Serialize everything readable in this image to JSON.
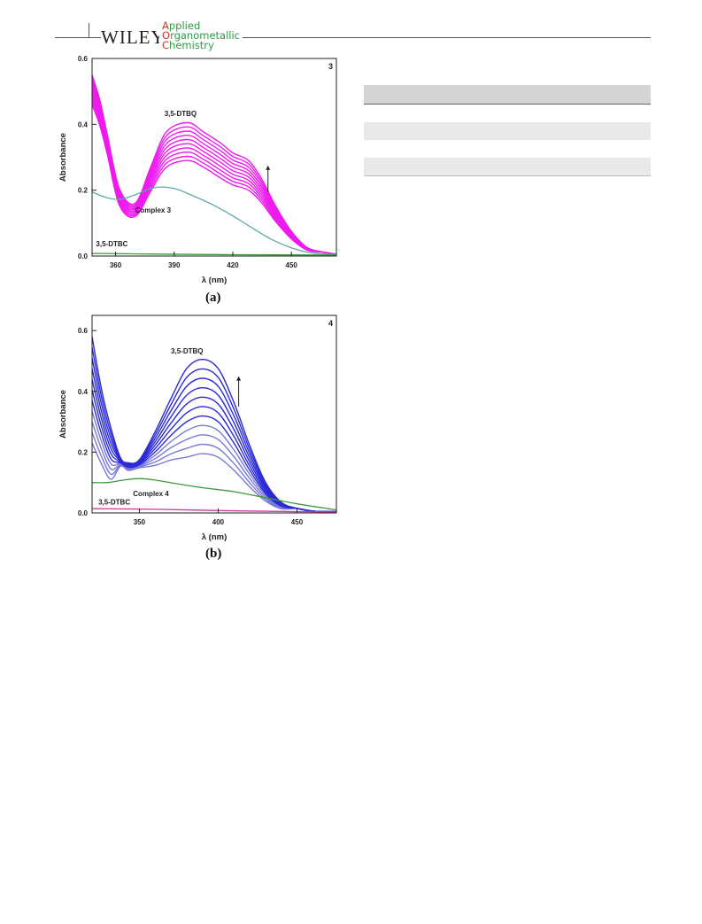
{
  "header": {
    "publisher": "WILEY",
    "journal_lines": [
      {
        "initial": "A",
        "rest": "pplied"
      },
      {
        "initial": "O",
        "rest": "rganometallic"
      },
      {
        "initial": "C",
        "rest": "hemistry"
      }
    ]
  },
  "figure": {
    "panel_a_label": "(a)",
    "panel_b_label": "(b)"
  },
  "colors": {
    "magenta": "#ee1aee",
    "blue": "#2a2ad8",
    "light_blue": "#7a78d8",
    "teal": "#5fa9a8",
    "green": "#3e9a3e",
    "pink": "#cc3a9c"
  },
  "chart_data": [
    {
      "type": "line",
      "panel_number": "3",
      "xlabel": "λ (nm)",
      "ylabel": "Absorbance",
      "xlim": [
        348,
        473
      ],
      "ylim": [
        0.0,
        0.6
      ],
      "x_ticks": [
        360,
        390,
        420,
        450
      ],
      "y_ticks": [
        "0.0",
        "0.2",
        "0.4",
        "0.6"
      ],
      "annotations": [
        "3,5-DTBQ",
        "Complex 3",
        "3,5-DTBC"
      ],
      "arrow": "up",
      "series": [
        {
          "name": "3,5-DTBQ",
          "count": 10,
          "shape": {
            "start_low": 0.46,
            "start_high": 0.55,
            "min_x": 370,
            "min_low": 0.12,
            "min_high": 0.16,
            "peak_x": 397,
            "peak_low": 0.29,
            "peak_high": 0.405,
            "shoulder_x": 428,
            "shoulder_low": 0.2,
            "shoulder_high": 0.29,
            "end": 0.005
          }
        },
        {
          "name": "Complex 3",
          "x": [
            348,
            355,
            362,
            370,
            380,
            390,
            400,
            410,
            420,
            430,
            440,
            450,
            460,
            473
          ],
          "y": [
            0.195,
            0.178,
            0.172,
            0.186,
            0.208,
            0.205,
            0.182,
            0.155,
            0.122,
            0.085,
            0.05,
            0.025,
            0.01,
            0.004
          ]
        },
        {
          "name": "3,5-DTBC",
          "x": [
            348,
            380,
            420,
            473
          ],
          "y": [
            0.008,
            0.006,
            0.004,
            0.003
          ]
        }
      ]
    },
    {
      "type": "line",
      "panel_number": "4",
      "xlabel": "λ (nm)",
      "ylabel": "Absorbance",
      "xlim": [
        320,
        475
      ],
      "ylim": [
        0.0,
        0.65
      ],
      "x_ticks": [
        350,
        400,
        450
      ],
      "y_ticks": [
        "0.0",
        "0.2",
        "0.4",
        "0.6"
      ],
      "annotations": [
        "3,5-DTBQ",
        "Complex 4",
        "3,5-DTBC"
      ],
      "arrow": "up",
      "series": [
        {
          "name": "3,5-DTBQ",
          "count": 11,
          "shape": {
            "start_low": 0.23,
            "start_high": 0.58,
            "min_x": 343,
            "min_low": 0.14,
            "min_high": 0.165,
            "peak_x": 390,
            "peak_low": 0.195,
            "peak_high": 0.505,
            "end": 0.004
          }
        },
        {
          "name": "Complex 4",
          "x": [
            320,
            330,
            340,
            350,
            360,
            375,
            390,
            410,
            430,
            450,
            475
          ],
          "y": [
            0.1,
            0.1,
            0.108,
            0.113,
            0.108,
            0.095,
            0.083,
            0.07,
            0.05,
            0.03,
            0.01
          ]
        },
        {
          "name": "3,5-DTBC",
          "x": [
            320,
            360,
            400,
            440,
            475
          ],
          "y": [
            0.014,
            0.012,
            0.008,
            0.005,
            0.003
          ]
        }
      ]
    }
  ]
}
